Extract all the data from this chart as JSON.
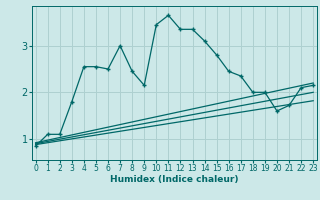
{
  "xlabel": "Humidex (Indice chaleur)",
  "bg_color": "#cce8e8",
  "grid_color": "#aed0d0",
  "line_color": "#006868",
  "x_ticks": [
    0,
    1,
    2,
    3,
    4,
    5,
    6,
    7,
    8,
    9,
    10,
    11,
    12,
    13,
    14,
    15,
    16,
    17,
    18,
    19,
    20,
    21,
    22,
    23
  ],
  "y_ticks": [
    1,
    2,
    3
  ],
  "ylim": [
    0.55,
    3.85
  ],
  "xlim": [
    -0.3,
    23.3
  ],
  "curve1_x": [
    0,
    1,
    2,
    3,
    4,
    5,
    6,
    7,
    8,
    9,
    10,
    11,
    12,
    13,
    14,
    15,
    16,
    17,
    18,
    19,
    20,
    21,
    22,
    23
  ],
  "curve1_y": [
    0.85,
    1.1,
    1.1,
    1.8,
    2.55,
    2.55,
    2.5,
    3.0,
    2.45,
    2.15,
    3.45,
    3.65,
    3.35,
    3.35,
    3.1,
    2.8,
    2.45,
    2.35,
    2.0,
    2.0,
    1.6,
    1.72,
    2.1,
    2.15
  ],
  "line2_x": [
    0,
    23
  ],
  "line2_y": [
    0.92,
    2.2
  ],
  "line3_x": [
    0,
    23
  ],
  "line3_y": [
    0.9,
    2.0
  ],
  "line4_x": [
    0,
    23
  ],
  "line4_y": [
    0.88,
    1.82
  ]
}
